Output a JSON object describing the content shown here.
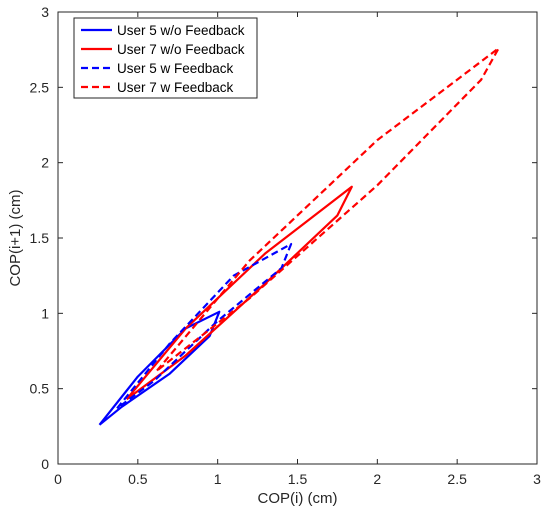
{
  "chart_data": {
    "type": "line",
    "title": "",
    "xlabel": "COP(i) (cm)",
    "ylabel": "COP(i+1) (cm)",
    "xlim": [
      0,
      3
    ],
    "ylim": [
      0,
      3
    ],
    "xticks": [
      "0",
      "0.5",
      "1",
      "1.5",
      "2",
      "2.5",
      "3"
    ],
    "yticks": [
      "0",
      "0.5",
      "1",
      "1.5",
      "2",
      "2.5",
      "3"
    ],
    "grid": false,
    "legend_position": "top-left",
    "series": [
      {
        "name": "User 5 w/o Feedback",
        "color": "#0000ff",
        "dash": "solid",
        "points": [
          [
            0.26,
            0.26
          ],
          [
            0.5,
            0.58
          ],
          [
            0.8,
            0.9
          ],
          [
            1.01,
            1.01
          ],
          [
            0.95,
            0.85
          ],
          [
            0.7,
            0.6
          ],
          [
            0.4,
            0.38
          ],
          [
            0.26,
            0.26
          ]
        ]
      },
      {
        "name": "User 7 w/o Feedback",
        "color": "#ff0000",
        "dash": "solid",
        "points": [
          [
            0.43,
            0.43
          ],
          [
            0.8,
            0.9
          ],
          [
            1.3,
            1.4
          ],
          [
            1.84,
            1.84
          ],
          [
            1.75,
            1.65
          ],
          [
            1.3,
            1.2
          ],
          [
            0.8,
            0.72
          ],
          [
            0.43,
            0.43
          ]
        ]
      },
      {
        "name": "User 5 w Feedback",
        "color": "#0000ff",
        "dash": "dashed",
        "points": [
          [
            0.37,
            0.37
          ],
          [
            0.7,
            0.8
          ],
          [
            1.1,
            1.25
          ],
          [
            1.46,
            1.46
          ],
          [
            1.4,
            1.3
          ],
          [
            1.0,
            0.95
          ],
          [
            0.6,
            0.55
          ],
          [
            0.37,
            0.37
          ]
        ]
      },
      {
        "name": "User 7 w Feedback",
        "color": "#ff0000",
        "dash": "dashed",
        "points": [
          [
            0.62,
            0.62
          ],
          [
            1.2,
            1.35
          ],
          [
            2.0,
            2.15
          ],
          [
            2.76,
            2.76
          ],
          [
            2.65,
            2.55
          ],
          [
            2.0,
            1.85
          ],
          [
            1.2,
            1.1
          ],
          [
            0.62,
            0.62
          ]
        ]
      }
    ]
  }
}
